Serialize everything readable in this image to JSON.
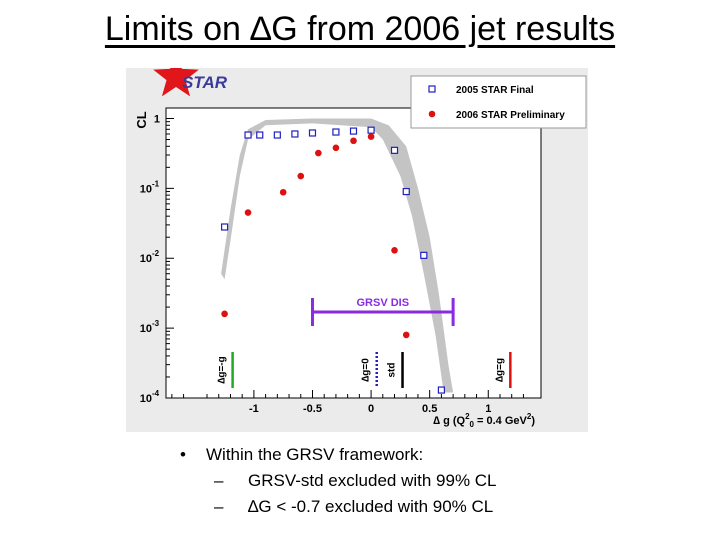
{
  "slide": {
    "title": "Limits on ∆G from 2006 jet results"
  },
  "bullets": {
    "main": "Within the GRSV framework:",
    "sub": [
      "GRSV-std excluded with 99% CL",
      "∆G < -0.7 excluded with 90% CL"
    ],
    "bullet_glyph": "•",
    "dash_glyph": "–"
  },
  "colors": {
    "final": "#2020c0",
    "preliminary": "#dd1111",
    "band": "#c4c4c4",
    "grsv_dis": "#8a2be2",
    "star": "#e0161b",
    "green": "#22aa22"
  },
  "chart_data": {
    "type": "scatter",
    "logo_text": "STAR",
    "ylabel": "CL",
    "xlabel_parts": {
      "prefix": "∆ g (Q",
      "sub": "0",
      "sup": "2",
      "suffix": " = 0.4 GeV",
      "sup2": "2",
      "end": ")"
    },
    "xlim": [
      -1.75,
      1.45
    ],
    "ylim_log10": [
      -4,
      0.15
    ],
    "yscale": "log",
    "x_ticks": [
      {
        "value": -1,
        "label": "-1"
      },
      {
        "value": -0.5,
        "label": "-0.5"
      },
      {
        "value": 0,
        "label": "0"
      },
      {
        "value": 0.5,
        "label": "0.5"
      },
      {
        "value": 1,
        "label": "1"
      }
    ],
    "y_ticks": [
      {
        "value": 1,
        "base": "1",
        "exp": ""
      },
      {
        "value": 0.1,
        "base": "10",
        "exp": "-1"
      },
      {
        "value": 0.01,
        "base": "10",
        "exp": "-2"
      },
      {
        "value": 0.001,
        "base": "10",
        "exp": "-3"
      },
      {
        "value": 0.0001,
        "base": "10",
        "exp": "-4"
      }
    ],
    "legend": {
      "placement": "top-right",
      "entries": [
        "2005 STAR Final",
        "2006 STAR Preliminary"
      ]
    },
    "series": [
      {
        "name": "2005 STAR Final",
        "marker": "open-square",
        "x": [
          -1.25,
          -1.05,
          -0.95,
          -0.8,
          -0.65,
          -0.5,
          -0.3,
          -0.15,
          0,
          0.2,
          0.3,
          0.45,
          0.6
        ],
        "y": [
          0.028,
          0.58,
          0.58,
          0.58,
          0.6,
          0.62,
          0.64,
          0.66,
          0.68,
          0.35,
          0.09,
          0.011,
          0.00013
        ]
      },
      {
        "name": "2006 STAR Preliminary",
        "marker": "filled-circle",
        "x": [
          -1.25,
          -1.05,
          -0.75,
          -0.6,
          -0.45,
          -0.3,
          -0.15,
          0,
          0.2,
          0.3
        ],
        "y": [
          0.0016,
          0.045,
          0.088,
          0.15,
          0.32,
          0.38,
          0.48,
          0.55,
          0.013,
          0.0008
        ]
      }
    ],
    "annotations": {
      "grsv_dis_label": "GRSV DIS",
      "grsv_dis_range": [
        -0.5,
        0.7
      ],
      "vertical_labels": [
        {
          "text": "∆g=-g",
          "x": -1.25
        },
        {
          "text": "∆g=0",
          "x": -0.02
        },
        {
          "text": "std",
          "x": 0.2
        },
        {
          "text": "∆g=g",
          "x": 1.12
        }
      ]
    }
  }
}
